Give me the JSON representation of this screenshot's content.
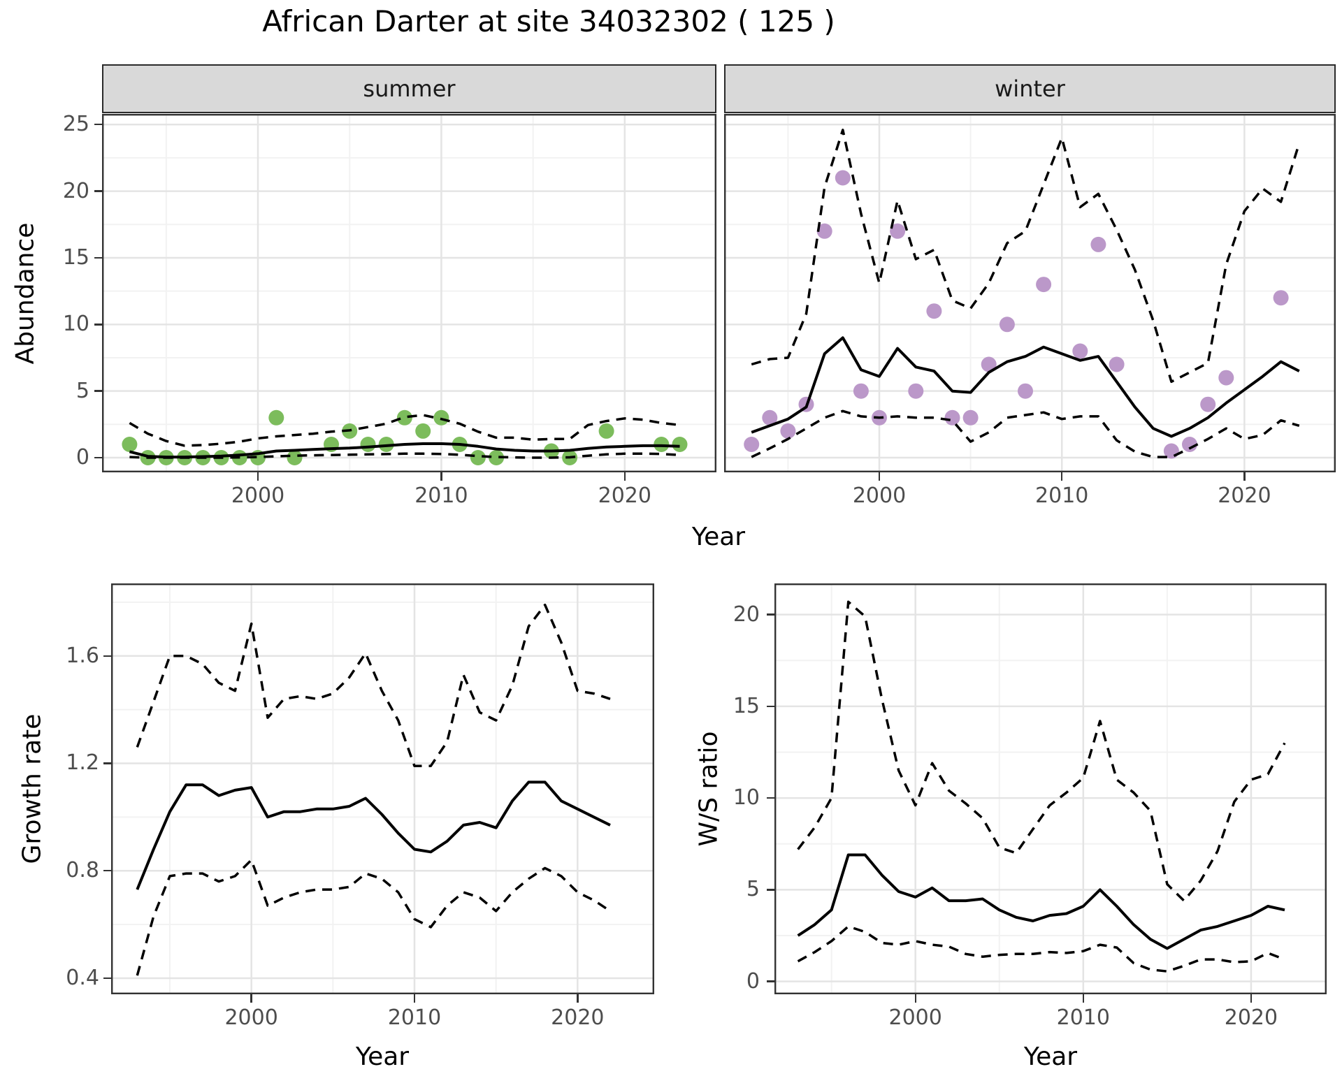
{
  "title": "African Darter at site 34032302 ( 125 )",
  "colors": {
    "summer_points": "#7cbc5c",
    "winter_points": "#bb98c9",
    "line": "#000000",
    "strip_background": "#d9d9d9",
    "grid_major": "#e4e4e4",
    "grid_minor": "#f2f2f2",
    "axis_text": "#4d4d4d"
  },
  "chart_data": [
    {
      "id": "summer",
      "type": "line",
      "facet_label": "summer",
      "xlabel": "Year",
      "ylabel": "Abundance",
      "legend": "none",
      "grid": "on",
      "xlim": [
        1991.5,
        2025
      ],
      "ylim": [
        -1.1,
        25.8
      ],
      "x_major": [
        2000,
        2010,
        2020
      ],
      "x_minor": [
        1995,
        2005,
        2015
      ],
      "x_labels": [
        "2000",
        "2010",
        "2020"
      ],
      "y_major": [
        0,
        5,
        10,
        15,
        20,
        25
      ],
      "y_minor": [
        2.5,
        7.5,
        12.5,
        17.5,
        22.5
      ],
      "y_labels": [
        "0",
        "5",
        "10",
        "15",
        "20",
        "25"
      ],
      "years": [
        1993,
        1994,
        1995,
        1996,
        1997,
        1998,
        1999,
        2000,
        2001,
        2002,
        2003,
        2004,
        2005,
        2006,
        2007,
        2008,
        2009,
        2010,
        2011,
        2012,
        2013,
        2014,
        2015,
        2016,
        2017,
        2018,
        2019,
        2020,
        2021,
        2022,
        2023
      ],
      "series": [
        {
          "name": "fit",
          "style": "solid",
          "values": [
            0.45,
            0.1,
            0.05,
            0.05,
            0.08,
            0.12,
            0.2,
            0.3,
            0.5,
            0.55,
            0.62,
            0.68,
            0.72,
            0.8,
            0.9,
            1.0,
            1.05,
            1.05,
            1.0,
            0.85,
            0.65,
            0.55,
            0.5,
            0.5,
            0.55,
            0.7,
            0.8,
            0.85,
            0.9,
            0.9,
            0.85
          ]
        },
        {
          "name": "upper_ci",
          "style": "dashed",
          "values": [
            2.6,
            1.8,
            1.25,
            0.9,
            0.95,
            1.05,
            1.2,
            1.45,
            1.6,
            1.7,
            1.8,
            1.95,
            2.05,
            2.3,
            2.55,
            3.05,
            3.2,
            2.9,
            2.55,
            1.95,
            1.5,
            1.5,
            1.35,
            1.4,
            1.4,
            2.45,
            2.75,
            2.95,
            2.85,
            2.6,
            2.45
          ]
        },
        {
          "name": "lower_ci",
          "style": "dashed",
          "values": [
            0.05,
            0.0,
            0.0,
            0.0,
            0.0,
            0.0,
            0.02,
            0.05,
            0.1,
            0.15,
            0.18,
            0.2,
            0.22,
            0.25,
            0.27,
            0.3,
            0.3,
            0.28,
            0.22,
            0.12,
            0.05,
            0.02,
            0.0,
            0.0,
            0.03,
            0.15,
            0.25,
            0.3,
            0.3,
            0.28,
            0.2
          ]
        }
      ],
      "points": {
        "color": "#7cbc5c",
        "data": [
          [
            1993,
            1
          ],
          [
            1994,
            0
          ],
          [
            1995,
            0
          ],
          [
            1996,
            0
          ],
          [
            1997,
            0
          ],
          [
            1998,
            0
          ],
          [
            1999,
            0
          ],
          [
            2000,
            0
          ],
          [
            2001,
            3
          ],
          [
            2002,
            0
          ],
          [
            2004,
            1
          ],
          [
            2005,
            2
          ],
          [
            2006,
            1
          ],
          [
            2007,
            1
          ],
          [
            2008,
            3
          ],
          [
            2009,
            2
          ],
          [
            2010,
            3
          ],
          [
            2011,
            1
          ],
          [
            2012,
            0
          ],
          [
            2013,
            0
          ],
          [
            2016,
            0.5
          ],
          [
            2017,
            0
          ],
          [
            2019,
            2
          ],
          [
            2022,
            1
          ],
          [
            2023,
            1
          ]
        ]
      }
    },
    {
      "id": "winter",
      "type": "line",
      "facet_label": "winter",
      "xlabel": "Year",
      "ylabel": "",
      "legend": "none",
      "grid": "on",
      "xlim": [
        1991.5,
        2025
      ],
      "ylim": [
        -1.1,
        25.8
      ],
      "x_major": [
        2000,
        2010,
        2020
      ],
      "x_minor": [
        1995,
        2005,
        2015
      ],
      "x_labels": [
        "2000",
        "2010",
        "2020"
      ],
      "y_major": [
        0,
        5,
        10,
        15,
        20,
        25
      ],
      "y_minor": [
        2.5,
        7.5,
        12.5,
        17.5,
        22.5
      ],
      "y_labels": null,
      "years": [
        1993,
        1994,
        1995,
        1996,
        1997,
        1998,
        1999,
        2000,
        2001,
        2002,
        2003,
        2004,
        2005,
        2006,
        2007,
        2008,
        2009,
        2010,
        2011,
        2012,
        2013,
        2014,
        2015,
        2016,
        2017,
        2018,
        2019,
        2020,
        2021,
        2022,
        2023
      ],
      "series": [
        {
          "name": "fit",
          "style": "solid",
          "values": [
            1.9,
            2.4,
            2.9,
            3.8,
            7.8,
            9.0,
            6.6,
            6.1,
            8.2,
            6.8,
            6.5,
            5.0,
            4.9,
            6.4,
            7.2,
            7.6,
            8.3,
            7.8,
            7.3,
            7.6,
            5.7,
            3.8,
            2.2,
            1.6,
            2.2,
            3.0,
            4.1,
            5.1,
            6.1,
            7.2,
            6.5
          ]
        },
        {
          "name": "upper_ci",
          "style": "dashed",
          "values": [
            7.0,
            7.4,
            7.5,
            10.8,
            20.3,
            24.6,
            18.3,
            13.1,
            19.3,
            14.9,
            15.6,
            11.8,
            11.2,
            13.1,
            16.1,
            17.0,
            20.5,
            24.0,
            18.8,
            19.8,
            17.1,
            14.1,
            10.3,
            5.7,
            6.4,
            7.1,
            14.5,
            18.5,
            20.2,
            19.2,
            23.6
          ]
        },
        {
          "name": "lower_ci",
          "style": "dashed",
          "values": [
            0.05,
            0.7,
            1.4,
            2.2,
            3.0,
            3.5,
            3.1,
            3.0,
            3.1,
            3.0,
            3.0,
            2.8,
            1.2,
            1.9,
            3.0,
            3.2,
            3.4,
            2.9,
            3.1,
            3.1,
            1.3,
            0.45,
            0.05,
            0.05,
            0.7,
            1.4,
            2.2,
            1.4,
            1.7,
            2.8,
            2.4
          ]
        }
      ],
      "points": {
        "color": "#bb98c9",
        "data": [
          [
            1993,
            1
          ],
          [
            1994,
            3
          ],
          [
            1995,
            2
          ],
          [
            1996,
            4
          ],
          [
            1997,
            17
          ],
          [
            1998,
            21
          ],
          [
            1999,
            5
          ],
          [
            2000,
            3
          ],
          [
            2001,
            17
          ],
          [
            2002,
            5
          ],
          [
            2003,
            11
          ],
          [
            2004,
            3
          ],
          [
            2005,
            3
          ],
          [
            2006,
            7
          ],
          [
            2007,
            10
          ],
          [
            2008,
            5
          ],
          [
            2009,
            13
          ],
          [
            2011,
            8
          ],
          [
            2012,
            16
          ],
          [
            2013,
            7
          ],
          [
            2016,
            0.5
          ],
          [
            2017,
            1
          ],
          [
            2018,
            4
          ],
          [
            2019,
            6
          ],
          [
            2022,
            12
          ]
        ]
      }
    },
    {
      "id": "growth",
      "type": "line",
      "facet_label": null,
      "xlabel": "Year",
      "ylabel": "Growth rate",
      "legend": "none",
      "grid": "on",
      "xlim": [
        1991.4,
        2024.7
      ],
      "ylim": [
        0.34,
        1.87
      ],
      "x_major": [
        2000,
        2010,
        2020
      ],
      "x_minor": [
        1995,
        2005,
        2015
      ],
      "x_labels": [
        "2000",
        "2010",
        "2020"
      ],
      "y_major": [
        0.4,
        0.8,
        1.2,
        1.6
      ],
      "y_minor": [
        0.6,
        1.0,
        1.4,
        1.8
      ],
      "y_labels": [
        "0.4",
        "0.8",
        "1.2",
        "1.6"
      ],
      "years": [
        1993,
        1994,
        1995,
        1996,
        1997,
        1998,
        1999,
        2000,
        2001,
        2002,
        2003,
        2004,
        2005,
        2006,
        2007,
        2008,
        2009,
        2010,
        2011,
        2012,
        2013,
        2014,
        2015,
        2016,
        2017,
        2018,
        2019,
        2020,
        2021,
        2022
      ],
      "series": [
        {
          "name": "fit",
          "style": "solid",
          "values": [
            0.73,
            0.88,
            1.02,
            1.12,
            1.12,
            1.08,
            1.1,
            1.11,
            1.0,
            1.02,
            1.02,
            1.03,
            1.03,
            1.04,
            1.07,
            1.01,
            0.94,
            0.88,
            0.87,
            0.91,
            0.97,
            0.98,
            0.96,
            1.06,
            1.13,
            1.13,
            1.06,
            1.03,
            1.0,
            0.97
          ]
        },
        {
          "name": "upper_ci",
          "style": "dashed",
          "values": [
            1.26,
            1.43,
            1.6,
            1.6,
            1.57,
            1.5,
            1.47,
            1.72,
            1.37,
            1.44,
            1.45,
            1.44,
            1.46,
            1.52,
            1.61,
            1.47,
            1.36,
            1.19,
            1.19,
            1.28,
            1.53,
            1.39,
            1.36,
            1.49,
            1.71,
            1.79,
            1.65,
            1.47,
            1.46,
            1.44
          ]
        },
        {
          "name": "lower_ci",
          "style": "dashed",
          "values": [
            0.41,
            0.63,
            0.78,
            0.79,
            0.79,
            0.76,
            0.78,
            0.84,
            0.67,
            0.7,
            0.72,
            0.73,
            0.73,
            0.74,
            0.79,
            0.77,
            0.72,
            0.62,
            0.59,
            0.67,
            0.72,
            0.7,
            0.65,
            0.72,
            0.77,
            0.81,
            0.78,
            0.72,
            0.69,
            0.65
          ]
        }
      ],
      "points": null
    },
    {
      "id": "ws",
      "type": "line",
      "facet_label": null,
      "xlabel": "Year",
      "ylabel": "W/S ratio",
      "legend": "none",
      "grid": "on",
      "xlim": [
        1991.6,
        2024.5
      ],
      "ylim": [
        -0.7,
        21.7
      ],
      "x_major": [
        2000,
        2010,
        2020
      ],
      "x_minor": [
        1995,
        2005,
        2015
      ],
      "x_labels": [
        "2000",
        "2010",
        "2020"
      ],
      "y_major": [
        0,
        5,
        10,
        15,
        20
      ],
      "y_minor": [
        2.5,
        7.5,
        12.5,
        17.5
      ],
      "y_labels": [
        "0",
        "5",
        "10",
        "15",
        "20"
      ],
      "years": [
        1993,
        1994,
        1995,
        1996,
        1997,
        1998,
        1999,
        2000,
        2001,
        2002,
        2003,
        2004,
        2005,
        2006,
        2007,
        2008,
        2009,
        2010,
        2011,
        2012,
        2013,
        2014,
        2015,
        2016,
        2017,
        2018,
        2019,
        2020,
        2021,
        2022
      ],
      "series": [
        {
          "name": "fit",
          "style": "solid",
          "values": [
            2.5,
            3.1,
            3.9,
            6.9,
            6.9,
            5.8,
            4.9,
            4.6,
            5.1,
            4.4,
            4.4,
            4.5,
            3.9,
            3.5,
            3.3,
            3.6,
            3.7,
            4.1,
            5.0,
            4.1,
            3.1,
            2.3,
            1.8,
            2.3,
            2.8,
            3.0,
            3.3,
            3.6,
            4.1,
            3.9
          ]
        },
        {
          "name": "upper_ci",
          "style": "dashed",
          "values": [
            7.2,
            8.4,
            10.0,
            20.7,
            19.9,
            15.4,
            11.5,
            9.6,
            11.9,
            10.4,
            9.7,
            8.9,
            7.3,
            7.0,
            8.3,
            9.6,
            10.3,
            11.1,
            14.2,
            11.0,
            10.3,
            9.3,
            5.3,
            4.4,
            5.5,
            7.1,
            9.8,
            11.0,
            11.3,
            13.0
          ]
        },
        {
          "name": "lower_ci",
          "style": "dashed",
          "values": [
            1.1,
            1.6,
            2.2,
            3.0,
            2.7,
            2.1,
            2.0,
            2.2,
            2.0,
            1.9,
            1.5,
            1.35,
            1.45,
            1.5,
            1.5,
            1.6,
            1.55,
            1.65,
            2.0,
            1.85,
            1.0,
            0.65,
            0.55,
            0.85,
            1.2,
            1.2,
            1.05,
            1.1,
            1.55,
            1.2
          ]
        }
      ],
      "points": null
    }
  ]
}
